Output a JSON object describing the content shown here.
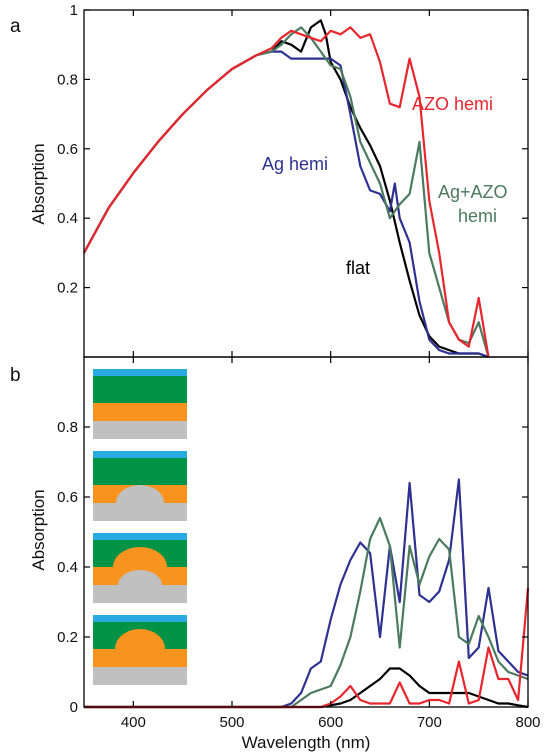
{
  "chart_data": [
    {
      "panel_label": "a",
      "type": "line",
      "ylabel": "Absorption",
      "xlim": [
        350,
        800
      ],
      "ylim": [
        0,
        1
      ],
      "yticks": [
        "0.2",
        "0.4",
        "0.6",
        "0.8",
        "1"
      ],
      "grid": false,
      "series": [
        {
          "name": "flat",
          "color": "#000000",
          "x": [
            350,
            375,
            400,
            425,
            450,
            475,
            500,
            525,
            540,
            550,
            560,
            570,
            580,
            590,
            595,
            600,
            610,
            620,
            630,
            640,
            650,
            660,
            670,
            680,
            690,
            700,
            710,
            720,
            730,
            740,
            750,
            760
          ],
          "y": [
            0.3,
            0.43,
            0.53,
            0.62,
            0.7,
            0.77,
            0.83,
            0.87,
            0.88,
            0.91,
            0.9,
            0.88,
            0.95,
            0.97,
            0.93,
            0.85,
            0.8,
            0.72,
            0.66,
            0.61,
            0.55,
            0.45,
            0.33,
            0.22,
            0.12,
            0.06,
            0.03,
            0.02,
            0.01,
            0.01,
            0.01,
            0.0
          ]
        },
        {
          "name": "Ag hemi",
          "color": "#2e3192",
          "x": [
            350,
            375,
            400,
            425,
            450,
            475,
            500,
            525,
            540,
            550,
            560,
            570,
            580,
            590,
            600,
            610,
            620,
            630,
            640,
            650,
            660,
            665,
            670,
            680,
            690,
            700,
            710,
            720,
            730,
            740,
            750,
            760
          ],
          "y": [
            0.3,
            0.43,
            0.53,
            0.62,
            0.7,
            0.77,
            0.83,
            0.87,
            0.88,
            0.88,
            0.86,
            0.86,
            0.86,
            0.86,
            0.86,
            0.84,
            0.7,
            0.55,
            0.48,
            0.47,
            0.42,
            0.5,
            0.4,
            0.33,
            0.16,
            0.05,
            0.02,
            0.01,
            0.01,
            0.01,
            0.01,
            0.0
          ]
        },
        {
          "name": "Ag+AZO hemi",
          "color": "#4c7a5e",
          "x": [
            350,
            375,
            400,
            425,
            450,
            475,
            500,
            525,
            540,
            550,
            560,
            570,
            580,
            590,
            600,
            610,
            620,
            630,
            640,
            650,
            660,
            670,
            680,
            690,
            700,
            710,
            720,
            730,
            740,
            750,
            760
          ],
          "y": [
            0.3,
            0.43,
            0.53,
            0.62,
            0.7,
            0.77,
            0.83,
            0.87,
            0.88,
            0.9,
            0.93,
            0.95,
            0.92,
            0.88,
            0.84,
            0.83,
            0.75,
            0.62,
            0.56,
            0.5,
            0.4,
            0.44,
            0.47,
            0.62,
            0.3,
            0.2,
            0.1,
            0.05,
            0.04,
            0.1,
            0.0
          ]
        },
        {
          "name": "AZO hemi",
          "color": "#e8262e",
          "x": [
            350,
            375,
            400,
            425,
            450,
            475,
            500,
            525,
            540,
            550,
            560,
            570,
            580,
            590,
            600,
            610,
            620,
            630,
            640,
            650,
            660,
            670,
            680,
            690,
            700,
            710,
            720,
            730,
            740,
            750,
            760
          ],
          "y": [
            0.3,
            0.43,
            0.53,
            0.62,
            0.7,
            0.77,
            0.83,
            0.87,
            0.89,
            0.92,
            0.94,
            0.93,
            0.92,
            0.91,
            0.94,
            0.93,
            0.95,
            0.92,
            0.93,
            0.85,
            0.73,
            0.72,
            0.86,
            0.75,
            0.45,
            0.3,
            0.1,
            0.05,
            0.03,
            0.17,
            0.0
          ]
        }
      ],
      "annotations": [
        {
          "text": "AZO hemi",
          "series": "AZO hemi"
        },
        {
          "text": "Ag hemi",
          "series": "Ag hemi"
        },
        {
          "text": "Ag+AZO",
          "series": "Ag+AZO hemi"
        },
        {
          "text": "hemi",
          "series": "Ag+AZO hemi"
        },
        {
          "text": "flat",
          "series": "flat"
        }
      ]
    },
    {
      "panel_label": "b",
      "type": "line",
      "ylabel": "Absorption",
      "xlabel": "Wavelength (nm)",
      "xlim": [
        350,
        800
      ],
      "ylim": [
        0,
        1
      ],
      "xticks": [
        "400",
        "500",
        "600",
        "700",
        "800"
      ],
      "yticks": [
        "0",
        "0.2",
        "0.4",
        "0.6",
        "0.8"
      ],
      "grid": false,
      "series": [
        {
          "name": "Ag hemi",
          "color": "#2e3192",
          "x": [
            350,
            550,
            560,
            570,
            580,
            590,
            600,
            610,
            620,
            630,
            640,
            650,
            660,
            670,
            680,
            690,
            700,
            710,
            720,
            730,
            740,
            750,
            760,
            770,
            780,
            790,
            800
          ],
          "y": [
            0,
            0,
            0.01,
            0.04,
            0.11,
            0.13,
            0.25,
            0.35,
            0.42,
            0.47,
            0.44,
            0.2,
            0.46,
            0.3,
            0.64,
            0.32,
            0.3,
            0.33,
            0.42,
            0.65,
            0.14,
            0.17,
            0.34,
            0.16,
            0.13,
            0.1,
            0.09
          ]
        },
        {
          "name": "Ag+AZO hemi",
          "color": "#4c7a5e",
          "x": [
            350,
            560,
            570,
            580,
            590,
            600,
            610,
            620,
            630,
            640,
            650,
            660,
            670,
            680,
            690,
            700,
            710,
            720,
            730,
            740,
            750,
            760,
            770,
            780,
            790,
            800
          ],
          "y": [
            0,
            0,
            0.02,
            0.04,
            0.05,
            0.06,
            0.12,
            0.2,
            0.33,
            0.48,
            0.54,
            0.46,
            0.17,
            0.46,
            0.35,
            0.43,
            0.48,
            0.45,
            0.2,
            0.18,
            0.26,
            0.2,
            0.13,
            0.1,
            0.09,
            0.08
          ]
        },
        {
          "name": "flat",
          "color": "#000000",
          "x": [
            350,
            590,
            600,
            610,
            620,
            630,
            640,
            650,
            660,
            670,
            680,
            690,
            700,
            710,
            720,
            730,
            740,
            750,
            760,
            770,
            780,
            790,
            800
          ],
          "y": [
            0,
            0,
            0.005,
            0.01,
            0.02,
            0.04,
            0.06,
            0.08,
            0.11,
            0.11,
            0.09,
            0.06,
            0.04,
            0.04,
            0.04,
            0.04,
            0.04,
            0.03,
            0.02,
            0.01,
            0.01,
            0.005,
            0
          ]
        },
        {
          "name": "AZO hemi",
          "color": "#e8262e",
          "x": [
            350,
            590,
            600,
            610,
            620,
            630,
            640,
            650,
            660,
            670,
            680,
            690,
            700,
            710,
            720,
            730,
            740,
            750,
            760,
            770,
            780,
            790,
            800
          ],
          "y": [
            0,
            0,
            0.01,
            0.03,
            0.06,
            0.02,
            0.01,
            0.01,
            0.01,
            0.07,
            0.01,
            0.01,
            0.02,
            0.02,
            0.01,
            0.13,
            0.01,
            0.02,
            0.17,
            0.08,
            0.08,
            0.02,
            0.34
          ]
        }
      ],
      "insets": [
        {
          "structure": "flat",
          "colors": {
            "top_layer": "#29aae2",
            "middle_layer": "#009245",
            "lower_layer": "#f7931e",
            "substrate": "#c0c0c0"
          }
        },
        {
          "structure": "Ag hemi"
        },
        {
          "structure": "Ag+AZO hemi"
        },
        {
          "structure": "AZO hemi"
        }
      ]
    }
  ]
}
